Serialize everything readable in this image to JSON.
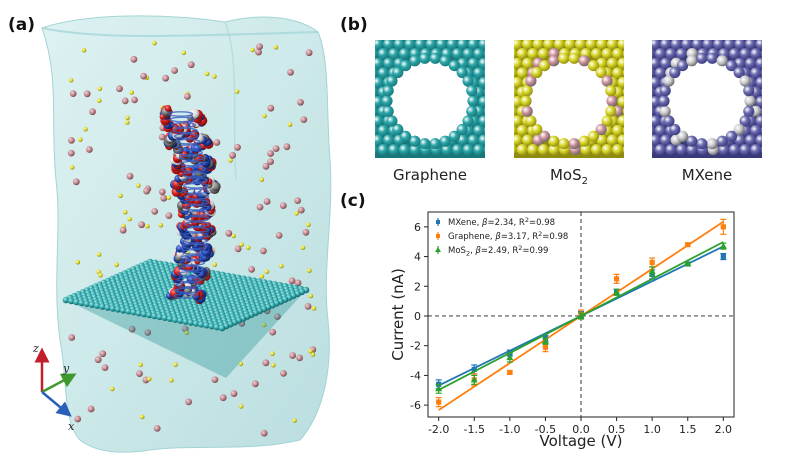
{
  "panels": {
    "a": {
      "label": "(a)",
      "axes": [
        "z",
        "y",
        "x"
      ]
    },
    "b": {
      "label": "(b)",
      "pores": [
        {
          "name": "Graphene",
          "sub": "",
          "atom": "#2aa5a8",
          "edge": "#17777a",
          "accent": ""
        },
        {
          "name": "MoS",
          "sub": "2",
          "atom": "#d9d72a",
          "edge": "#8e8b10",
          "accent": "#c98a96"
        },
        {
          "name": "MXene",
          "sub": "",
          "atom": "#6a6ab0",
          "edge": "#3a3a7a",
          "accent": "#c8c8cc"
        }
      ]
    },
    "c": {
      "label": "(c)"
    }
  },
  "colors": {
    "mxene": "#1f77b4",
    "graphene": "#ff7f0e",
    "mos2": "#2ca02c",
    "water": "#bfe3e3",
    "sheet": "#2aa5a8"
  },
  "chart_data": {
    "type": "line",
    "xlabel": "Voltage (V)",
    "ylabel": "Current (nA)",
    "xlim": [
      -2.15,
      2.15
    ],
    "ylim": [
      -6.8,
      7.0
    ],
    "xticks": [
      -2.0,
      -1.5,
      -1.0,
      -0.5,
      0.0,
      0.5,
      1.0,
      1.5,
      2.0
    ],
    "yticks": [
      -6,
      -4,
      -2,
      0,
      2,
      4,
      6
    ],
    "xtick_labels": [
      "-2.0",
      "-1.5",
      "-1.0",
      "-0.5",
      "0.0",
      "0.5",
      "1.0",
      "1.5",
      "2.0"
    ],
    "ytick_labels": [
      "-6",
      "-4",
      "-2",
      "0",
      "2",
      "4",
      "6"
    ],
    "legend_position": "top-left",
    "x": [
      -2.0,
      -1.5,
      -1.0,
      -0.5,
      0.0,
      0.5,
      1.0,
      1.5,
      2.0
    ],
    "series": [
      {
        "name": "MXene, β=2.34, R²=0.98",
        "legend": {
          "pre": "MXene, ",
          "beta": "β",
          "rest": "=2.34, R",
          "sup": "2",
          "post": "=0.98"
        },
        "key": "mxene",
        "slope": 2.34,
        "y": [
          -4.6,
          -3.6,
          -2.5,
          -1.5,
          0.1,
          1.6,
          2.8,
          3.5,
          4.0
        ],
        "err": [
          0.3,
          0.3,
          0.2,
          0.2,
          0.2,
          0.2,
          0.3,
          0.1,
          0.2
        ]
      },
      {
        "name": "Graphene, β=3.17, R²=0.98",
        "legend": {
          "pre": "Graphene, ",
          "beta": "β",
          "rest": "=3.17, R",
          "sup": "2",
          "post": "=0.98"
        },
        "key": "graphene",
        "slope": 3.17,
        "y": [
          -5.8,
          -4.3,
          -3.8,
          -2.1,
          0.1,
          2.5,
          3.6,
          4.8,
          6.0
        ],
        "err": [
          0.3,
          0.4,
          0.1,
          0.3,
          0.3,
          0.3,
          0.3,
          0.1,
          0.5
        ]
      },
      {
        "name": "MoS₂, β=2.49, R²=0.99",
        "legend": {
          "pre": "MoS",
          "sub": "2",
          "mid": ", ",
          "beta": "β",
          "rest": "=2.49, R",
          "sup": "2",
          "post": "=0.99"
        },
        "key": "mos2",
        "slope": 2.49,
        "y": [
          -4.9,
          -4.3,
          -2.8,
          -1.7,
          0.0,
          1.6,
          3.0,
          3.5,
          4.7
        ],
        "err": [
          0.3,
          0.3,
          0.3,
          0.2,
          0.2,
          0.2,
          0.3,
          0.1,
          0.2
        ]
      }
    ]
  }
}
